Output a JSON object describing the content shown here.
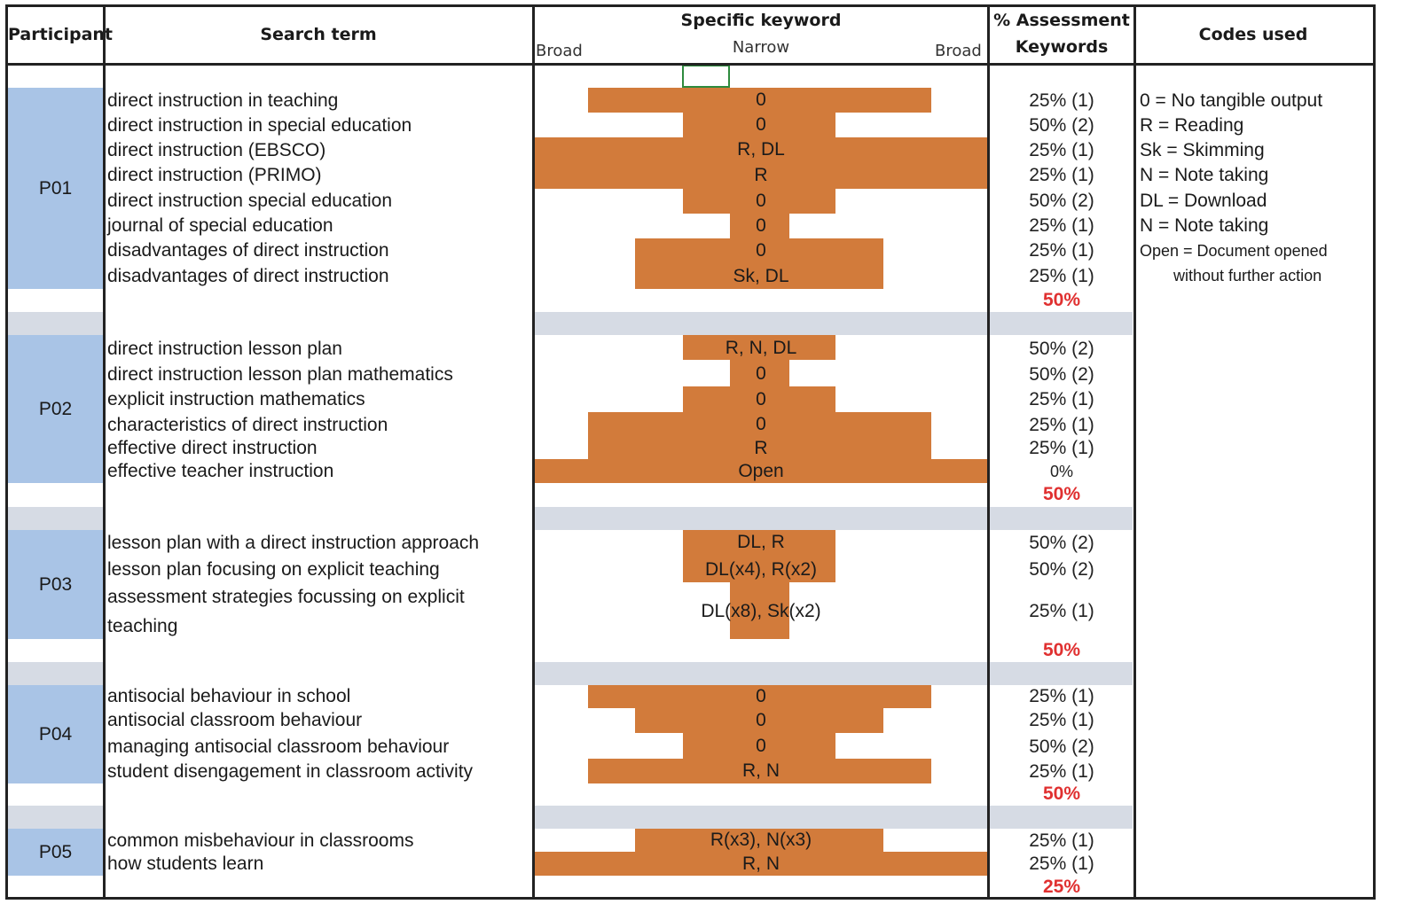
{
  "header": {
    "participant": "Participant",
    "search_term": "Search term",
    "specific_keyword": "Specific keyword",
    "broad_left": "Broad",
    "narrow": "Narrow",
    "broad_right": "Broad",
    "pct_line1": "% Assessment",
    "pct_line2": "Keywords",
    "codes_used": "Codes used"
  },
  "participants": [
    {
      "id": "P01",
      "rows": [
        {
          "term": "direct instruction in teaching",
          "code": "0",
          "pct": "25% (1)"
        },
        {
          "term": "direct instruction in special education",
          "code": "0",
          "pct": "50% (2)"
        },
        {
          "term": "direct instruction (EBSCO)",
          "code": "R, DL",
          "pct": "25% (1)"
        },
        {
          "term": "direct instruction (PRIMO)",
          "code": "R",
          "pct": "25% (1)"
        },
        {
          "term": "direct instruction special education",
          "code": "0",
          "pct": "50% (2)"
        },
        {
          "term": "journal of special education",
          "code": "0",
          "pct": "25% (1)"
        },
        {
          "term": "disadvantages of direct instruction",
          "code": "0",
          "pct": "25% (1)"
        },
        {
          "term": "disadvantages of direct instruction",
          "code": "Sk, DL",
          "pct": "25% (1)"
        }
      ],
      "total": "50%"
    },
    {
      "id": "P02",
      "rows": [
        {
          "term": "direct instruction lesson plan",
          "code": "R, N, DL",
          "pct": "50% (2)"
        },
        {
          "term": "direct instruction lesson plan mathematics",
          "code": "0",
          "pct": "50% (2)"
        },
        {
          "term": "explicit instruction mathematics",
          "code": "0",
          "pct": "25% (1)"
        },
        {
          "term": "characteristics of direct instruction",
          "code": "0",
          "pct": "25% (1)"
        },
        {
          "term": "effective direct instruction",
          "code": "R",
          "pct": "25% (1)"
        },
        {
          "term": "effective teacher instruction",
          "code": "Open",
          "pct": "0%"
        }
      ],
      "total": "50%"
    },
    {
      "id": "P03",
      "rows": [
        {
          "term": "lesson plan with a direct instruction approach",
          "code": "DL, R",
          "pct": "50% (2)"
        },
        {
          "term": "lesson plan focusing on explicit teaching",
          "code": "DL(x4), R(x2)",
          "pct": "50% (2)"
        },
        {
          "term": "assessment strategies focussing on explicit",
          "term2": "teaching",
          "code": "DL(x8), Sk(x2)",
          "pct": "25% (1)"
        }
      ],
      "total": "50%"
    },
    {
      "id": "P04",
      "rows": [
        {
          "term": "antisocial behaviour in school",
          "code": "0",
          "pct": "25% (1)"
        },
        {
          "term": "antisocial classroom behaviour",
          "code": "0",
          "pct": "25% (1)"
        },
        {
          "term": "managing antisocial classroom behaviour",
          "code": "0",
          "pct": "50% (2)"
        },
        {
          "term": "student disengagement in classroom activity",
          "code": "R, N",
          "pct": "25% (1)"
        }
      ],
      "total": "50%"
    },
    {
      "id": "P05",
      "rows": [
        {
          "term": "common misbehaviour in classrooms",
          "code": "R(x3), N(x3)",
          "pct": "25% (1)"
        },
        {
          "term": "how students learn",
          "code": "R, N",
          "pct": "25% (1)"
        }
      ],
      "total": "25%"
    }
  ],
  "legend": [
    "0 = No tangible output",
    "R = Reading",
    "Sk = Skimming",
    "N = Note taking",
    "DL = Download",
    "N = Note taking",
    "Open = Document opened",
    "without further action"
  ],
  "colors": {
    "bar": "#d27b3b",
    "participant_cell": "#a9c4e6",
    "separator": "#d6dbe4",
    "total": "#e03030"
  }
}
